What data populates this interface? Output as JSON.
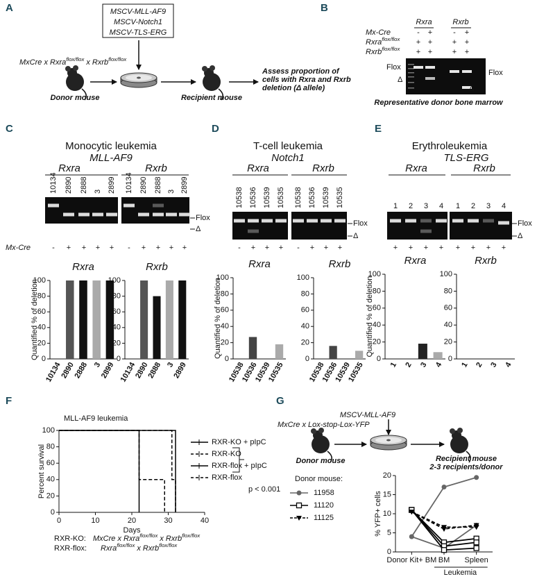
{
  "panel_labels": [
    "A",
    "B",
    "C",
    "D",
    "E",
    "F",
    "G"
  ],
  "panel_a": {
    "vectors": [
      "MSCV-MLL-AF9",
      "MSCV-Notch1",
      "MSCV-TLS-ERG"
    ],
    "cross": [
      "MxCre x Rxra",
      "flox/flox",
      " x Rxrb",
      "flox/flox"
    ],
    "donor": "Donor mouse",
    "recipient": "Recipient mouse",
    "assess": [
      "Assess proportion of",
      "cells with Rxra and Rxrb",
      "deletion (Δ allele)"
    ]
  },
  "panel_b": {
    "columns": [
      "Rxra",
      "Rxrb"
    ],
    "rows": [
      {
        "label": [
          "Mx-Cre"
        ],
        "signs": [
          "-",
          "+",
          "-",
          "+"
        ]
      },
      {
        "label": [
          "Rxra",
          "flox/flox"
        ],
        "signs": [
          "+",
          "+",
          "+",
          "+"
        ]
      },
      {
        "label": [
          "Rxrb",
          "flox/flox"
        ],
        "signs": [
          "+",
          "+",
          "+",
          "+"
        ]
      }
    ],
    "flox": "Flox",
    "delta": "Δ",
    "caption": "Representative donor bone marrow"
  },
  "panel_c": {
    "title": "Monocytic leukemia",
    "vector": "MLL-AF9",
    "genes": [
      "Rxra",
      "Rxrb"
    ],
    "lanes": [
      "10134",
      "2890",
      "2888",
      "3",
      "2899"
    ],
    "mx_cre": "Mx-Cre",
    "signs": [
      "-",
      "+",
      "+",
      "+",
      "+"
    ],
    "flox": "Flox",
    "delta": "Δ"
  },
  "panel_d": {
    "title": "T-cell leukemia",
    "vector": "Notch1",
    "genes": [
      "Rxra",
      "Rxrb"
    ],
    "lanes": [
      "10538",
      "10536",
      "10539",
      "10535"
    ],
    "signs": [
      "-",
      "+",
      "+",
      "+"
    ],
    "flox": "Flox",
    "delta": "Δ"
  },
  "panel_e": {
    "title": "Erythroleukemia",
    "vector": "TLS-ERG",
    "genes": [
      "Rxra",
      "Rxrb"
    ],
    "lanes": [
      "1",
      "2",
      "3",
      "4"
    ],
    "signs": [
      "+",
      "+",
      "+",
      "+"
    ],
    "flox": "Flox",
    "delta": "Δ"
  },
  "panel_f": {
    "notes": [
      {
        "label": "RXR-KO:",
        "cross": [
          "MxCre x Rxra",
          "flox/flox",
          " x Rxrb",
          "flox/flox"
        ]
      },
      {
        "label": "RXR-flox:",
        "cross": [
          "Rxra",
          "flox/flox",
          " x Rxrb",
          "flox/flox"
        ]
      }
    ]
  },
  "panel_g": {
    "vector": "MSCV-MLL-AF9",
    "cross": "MxCre x Lox-stop-Lox-YFP",
    "donor": "Donor mouse",
    "recipient": [
      "Recipient mouse",
      "2-3 recipients/donor"
    ],
    "legend_title": "Donor mouse:"
  },
  "chart_data": [
    {
      "type": "bar",
      "title": "Rxra",
      "ylabel": "Quantified % of deletion",
      "categories": [
        "10134",
        "2890",
        "2888",
        "3",
        "2899"
      ],
      "values": [
        0,
        100,
        100,
        100,
        100
      ],
      "colors": [
        "#555555",
        "#555555",
        "#111111",
        "#aaaaaa",
        "#111111"
      ],
      "ylim": [
        0,
        100
      ],
      "yticks": [
        0,
        20,
        40,
        60,
        80,
        100
      ]
    },
    {
      "type": "bar",
      "title": "Rxrb",
      "categories": [
        "10134",
        "2890",
        "2888",
        "3",
        "2899"
      ],
      "values": [
        0,
        100,
        80,
        100,
        100
      ],
      "colors": [
        "#555555",
        "#555555",
        "#111111",
        "#aaaaaa",
        "#111111"
      ],
      "ylim": [
        0,
        100
      ],
      "yticks": [
        0,
        20,
        40,
        60,
        80,
        100
      ]
    },
    {
      "type": "bar",
      "title": "Rxra",
      "ylabel": "Quantified % of deletion",
      "categories": [
        "10538",
        "10536",
        "10539",
        "10535"
      ],
      "values": [
        0,
        27,
        0,
        18
      ],
      "colors": [
        "#555555",
        "#444444",
        "#111111",
        "#aaaaaa"
      ],
      "ylim": [
        0,
        100
      ],
      "yticks": [
        0,
        20,
        40,
        60,
        80,
        100
      ]
    },
    {
      "type": "bar",
      "title": "Rxrb",
      "categories": [
        "10538",
        "10536",
        "10539",
        "10535"
      ],
      "values": [
        0,
        16,
        0,
        10
      ],
      "colors": [
        "#555555",
        "#444444",
        "#111111",
        "#aaaaaa"
      ],
      "ylim": [
        0,
        100
      ],
      "yticks": [
        0,
        20,
        40,
        60,
        80,
        100
      ]
    },
    {
      "type": "bar",
      "title": "Rxra",
      "ylabel": "Quantified % of deletion",
      "categories": [
        "1",
        "2",
        "3",
        "4"
      ],
      "values": [
        0,
        0,
        18,
        8
      ],
      "colors": [
        "#555555",
        "#444444",
        "#222222",
        "#aaaaaa"
      ],
      "ylim": [
        0,
        100
      ],
      "yticks": [
        0,
        20,
        40,
        60,
        80,
        100
      ]
    },
    {
      "type": "bar",
      "title": "Rxrb",
      "categories": [
        "1",
        "2",
        "3",
        "4"
      ],
      "values": [
        0,
        0,
        0,
        0
      ],
      "colors": [
        "#555555",
        "#444444",
        "#222222",
        "#aaaaaa"
      ],
      "ylim": [
        0,
        100
      ],
      "yticks": [
        0,
        20,
        40,
        60,
        80,
        100
      ]
    },
    {
      "type": "line",
      "title": "MLL-AF9 leukemia",
      "xlabel": "Days",
      "ylabel": "Percent survival",
      "xlim": [
        0,
        40
      ],
      "xticks": [
        0,
        10,
        20,
        30,
        40
      ],
      "ylim": [
        0,
        100
      ],
      "yticks": [
        0,
        20,
        40,
        60,
        80,
        100
      ],
      "series": [
        {
          "name": "RXR-KO + pIpC",
          "color": "#000000",
          "dashed": false,
          "x": [
            0,
            22,
            22
          ],
          "values": [
            100,
            100,
            0
          ]
        },
        {
          "name": "RXR-KO",
          "color": "#000000",
          "dashed": true,
          "x": [
            0,
            22,
            22,
            29,
            29
          ],
          "values": [
            100,
            100,
            40,
            40,
            0
          ]
        },
        {
          "name": "RXR-flox + pIpC",
          "color": "#000000",
          "dashed": false,
          "x": [
            0,
            32,
            32
          ],
          "values": [
            100,
            100,
            0
          ]
        },
        {
          "name": "RXR-flox",
          "color": "#000000",
          "dashed": true,
          "x": [
            0,
            31,
            31,
            32,
            32
          ],
          "values": [
            100,
            100,
            40,
            40,
            0
          ]
        }
      ],
      "annotation": "p < 0.001"
    },
    {
      "type": "line",
      "ylabel": "% YFP+ cells",
      "categories": [
        "Donor Kit+ BM",
        "BM",
        "Spleen"
      ],
      "group_label": "Leukemia",
      "ylim": [
        0,
        20
      ],
      "yticks": [
        0,
        5,
        10,
        15,
        20
      ],
      "series": [
        {
          "name": "11958",
          "color": "#666666",
          "marker": "circle",
          "dashed": false,
          "values": [
            [
              4,
              17,
              19.5
            ],
            [
              4,
              1,
              7
            ]
          ]
        },
        {
          "name": "11120",
          "color": "#000000",
          "marker": "open-square",
          "dashed": false,
          "values": [
            [
              11,
              2.5,
              3.5
            ],
            [
              11,
              1.5,
              2.5
            ],
            [
              11,
              0.5,
              1
            ]
          ]
        },
        {
          "name": "11125",
          "color": "#000000",
          "marker": "triangle",
          "dashed": true,
          "values": [
            [
              10.5,
              6.5,
              6.5
            ],
            [
              10.5,
              6,
              7
            ]
          ]
        }
      ]
    }
  ]
}
